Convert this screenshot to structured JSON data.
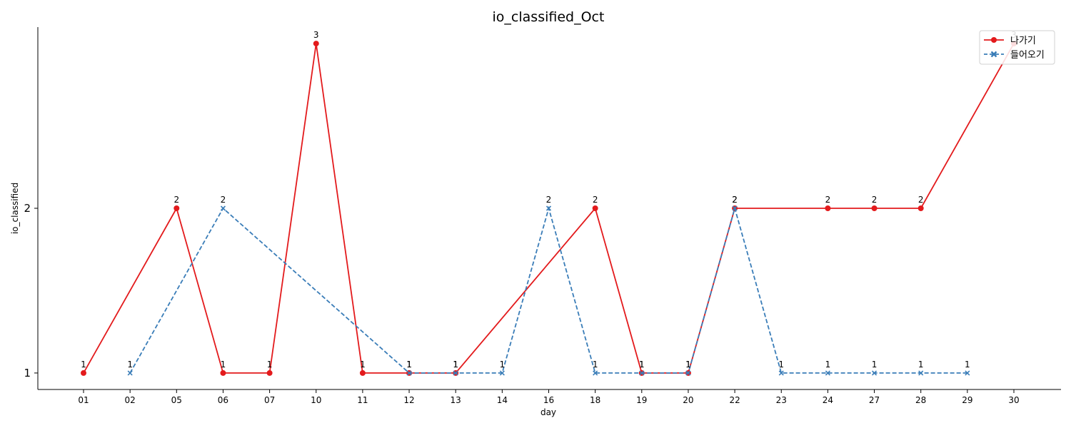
{
  "chart_data": {
    "type": "line",
    "title": "io_classified_Oct",
    "xlabel": "day",
    "ylabel": "io_classified",
    "categories": [
      "01",
      "02",
      "05",
      "06",
      "07",
      "10",
      "11",
      "12",
      "13",
      "14",
      "16",
      "18",
      "19",
      "20",
      "22",
      "23",
      "24",
      "27",
      "28",
      "29",
      "30"
    ],
    "yticks": [
      1,
      2
    ],
    "ylim": [
      0.9,
      3.1
    ],
    "grid": false,
    "legend_position": "top-right",
    "series": [
      {
        "name": "나가기",
        "color": "#e31a1c",
        "marker": "circle",
        "line_style": "solid",
        "points": [
          {
            "x": "01",
            "y": 1
          },
          {
            "x": "05",
            "y": 2
          },
          {
            "x": "06",
            "y": 1
          },
          {
            "x": "07",
            "y": 1
          },
          {
            "x": "10",
            "y": 3
          },
          {
            "x": "11",
            "y": 1
          },
          {
            "x": "12",
            "y": 1
          },
          {
            "x": "13",
            "y": 1
          },
          {
            "x": "18",
            "y": 2
          },
          {
            "x": "19",
            "y": 1
          },
          {
            "x": "20",
            "y": 1
          },
          {
            "x": "22",
            "y": 2
          },
          {
            "x": "24",
            "y": 2
          },
          {
            "x": "27",
            "y": 2
          },
          {
            "x": "28",
            "y": 2
          },
          {
            "x": "30",
            "y": 3
          }
        ]
      },
      {
        "name": "들어오기",
        "color": "#3a7db8",
        "marker": "x",
        "line_style": "dashed",
        "points": [
          {
            "x": "02",
            "y": 1
          },
          {
            "x": "06",
            "y": 2
          },
          {
            "x": "12",
            "y": 1
          },
          {
            "x": "13",
            "y": 1
          },
          {
            "x": "14",
            "y": 1
          },
          {
            "x": "16",
            "y": 2
          },
          {
            "x": "18",
            "y": 1
          },
          {
            "x": "19",
            "y": 1
          },
          {
            "x": "20",
            "y": 1
          },
          {
            "x": "22",
            "y": 2
          },
          {
            "x": "23",
            "y": 1
          },
          {
            "x": "24",
            "y": 1
          },
          {
            "x": "27",
            "y": 1
          },
          {
            "x": "28",
            "y": 1
          },
          {
            "x": "29",
            "y": 1
          }
        ]
      }
    ]
  }
}
